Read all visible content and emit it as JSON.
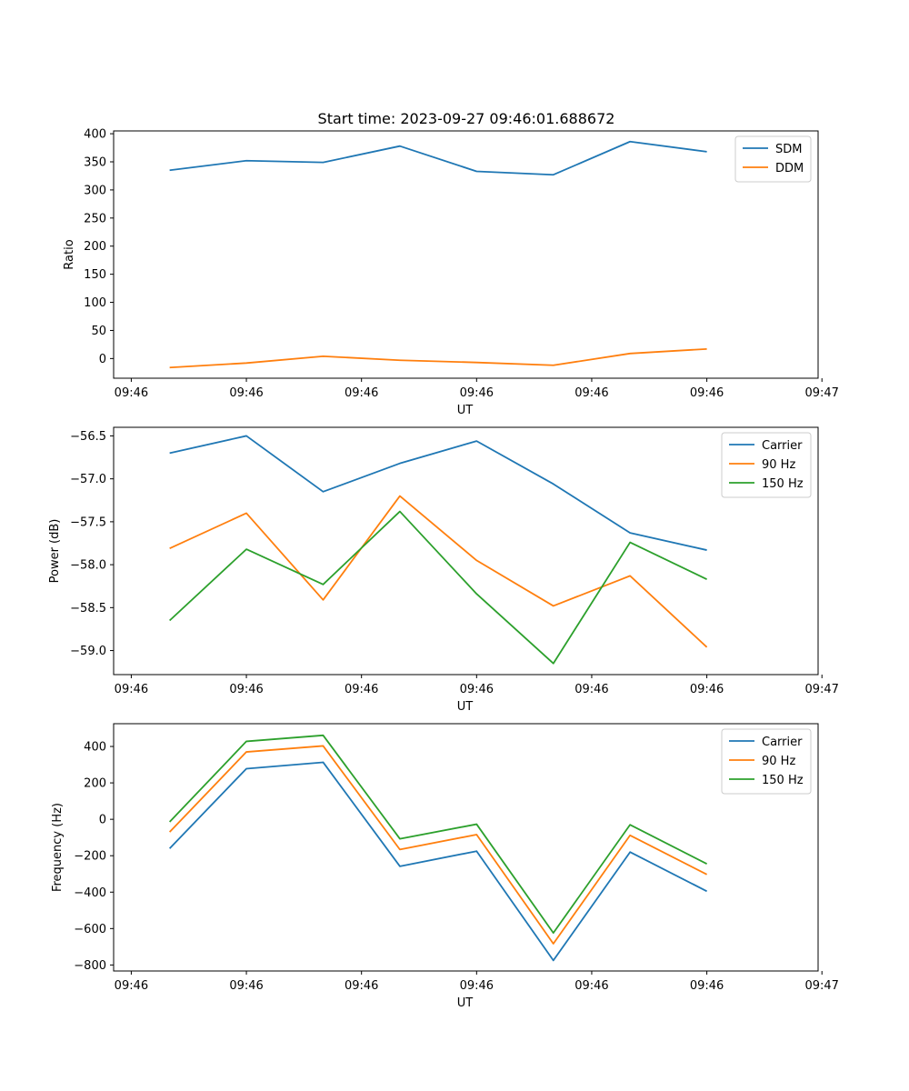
{
  "figure_title": "Start time: 2023-09-27 09:46:01.688672",
  "colors": {
    "blue": "#1f77b4",
    "orange": "#ff7f0e",
    "green": "#2ca02c"
  },
  "chart_data": [
    {
      "type": "line",
      "xlabel": "UT",
      "ylabel": "Ratio",
      "x": [
        1,
        2,
        3,
        4,
        5,
        6,
        7,
        8
      ],
      "xlim": [
        0.27,
        9.45
      ],
      "ylim": [
        -35,
        405
      ],
      "yticks": [
        0,
        50,
        100,
        150,
        200,
        250,
        300,
        350,
        400
      ],
      "yticklabels": [
        "0",
        "50",
        "100",
        "150",
        "200",
        "250",
        "300",
        "350",
        "400"
      ],
      "xticks": [
        0.5,
        2.0,
        3.5,
        5.0,
        6.5,
        8.0,
        9.5
      ],
      "xticklabels": [
        "09:46",
        "09:46",
        "09:46",
        "09:46",
        "09:46",
        "09:46",
        "09:47"
      ],
      "legend_loc": "top-right",
      "series": [
        {
          "name": "SDM",
          "color": "#1f77b4",
          "values": [
            335,
            352,
            349,
            378,
            333,
            327,
            386,
            368
          ]
        },
        {
          "name": "DDM",
          "color": "#ff7f0e",
          "values": [
            -16,
            -8,
            4,
            -3,
            -7,
            -12,
            9,
            17
          ]
        }
      ]
    },
    {
      "type": "line",
      "xlabel": "UT",
      "ylabel": "Power (dB)",
      "x": [
        1,
        2,
        3,
        4,
        5,
        6,
        7,
        8
      ],
      "xlim": [
        0.27,
        9.45
      ],
      "ylim": [
        -59.28,
        -56.4
      ],
      "yticks": [
        -59.0,
        -58.5,
        -58.0,
        -57.5,
        -57.0,
        -56.5
      ],
      "yticklabels": [
        "−59.0",
        "−58.5",
        "−58.0",
        "−57.5",
        "−57.0",
        "−56.5"
      ],
      "xticks": [
        0.5,
        2.0,
        3.5,
        5.0,
        6.5,
        8.0,
        9.5
      ],
      "xticklabels": [
        "09:46",
        "09:46",
        "09:46",
        "09:46",
        "09:46",
        "09:46",
        "09:47"
      ],
      "legend_loc": "top-right",
      "series": [
        {
          "name": "Carrier",
          "color": "#1f77b4",
          "values": [
            -56.7,
            -56.5,
            -57.15,
            -56.82,
            -56.56,
            -57.06,
            -57.63,
            -57.83
          ]
        },
        {
          "name": "90 Hz",
          "color": "#ff7f0e",
          "values": [
            -57.81,
            -57.4,
            -58.41,
            -57.2,
            -57.95,
            -58.48,
            -58.13,
            -58.96
          ]
        },
        {
          "name": "150 Hz",
          "color": "#2ca02c",
          "values": [
            -58.65,
            -57.82,
            -58.23,
            -57.38,
            -58.34,
            -59.15,
            -57.74,
            -58.17
          ]
        }
      ]
    },
    {
      "type": "line",
      "xlabel": "UT",
      "ylabel": "Frequency (Hz)",
      "x": [
        1,
        2,
        3,
        4,
        5,
        6,
        7,
        8
      ],
      "xlim": [
        0.27,
        9.45
      ],
      "ylim": [
        -833,
        525
      ],
      "yticks": [
        -800,
        -600,
        -400,
        -200,
        0,
        200,
        400
      ],
      "yticklabels": [
        "−800",
        "−600",
        "−400",
        "−200",
        "0",
        "200",
        "400"
      ],
      "xticks": [
        0.5,
        2.0,
        3.5,
        5.0,
        6.5,
        8.0,
        9.5
      ],
      "xticklabels": [
        "09:46",
        "09:46",
        "09:46",
        "09:46",
        "09:46",
        "09:46",
        "09:47"
      ],
      "legend_loc": "top-right",
      "series": [
        {
          "name": "Carrier",
          "color": "#1f77b4",
          "values": [
            -160,
            278,
            313,
            -258,
            -175,
            -775,
            -180,
            -395
          ]
        },
        {
          "name": "90 Hz",
          "color": "#ff7f0e",
          "values": [
            -70,
            370,
            403,
            -166,
            -84,
            -683,
            -88,
            -303
          ]
        },
        {
          "name": "150 Hz",
          "color": "#2ca02c",
          "values": [
            -14,
            428,
            461,
            -107,
            -27,
            -624,
            -30,
            -245
          ]
        }
      ]
    }
  ]
}
